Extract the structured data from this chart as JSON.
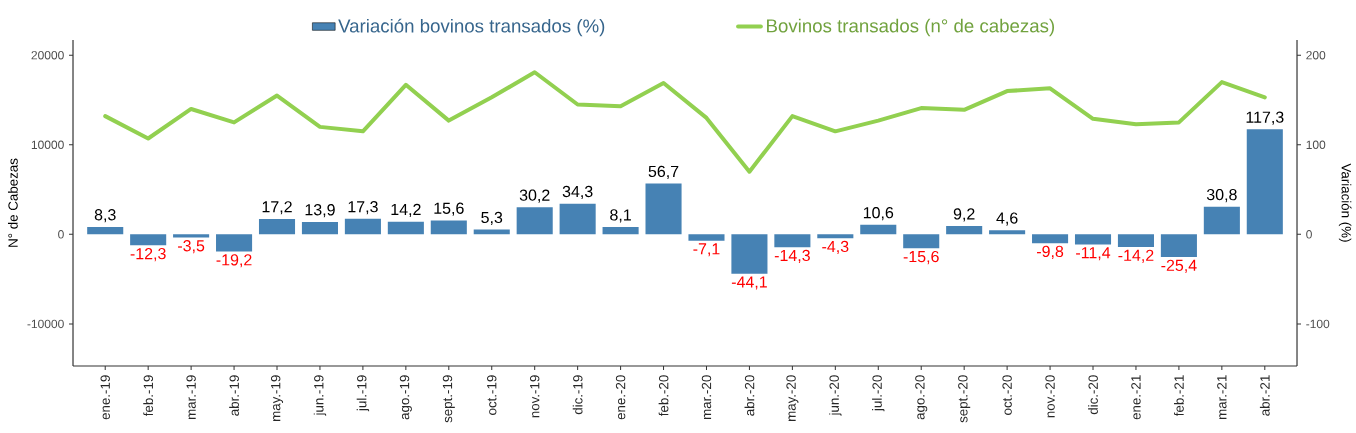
{
  "chart_data": {
    "type": "bar",
    "ylabel": "N° de Cabezas",
    "y2label": "Variación (%)",
    "categories": [
      "ene.-19",
      "feb.-19",
      "mar.-19",
      "abr.-19",
      "may.-19",
      "jun.-19",
      "jul.-19",
      "ago.-19",
      "sept.-19",
      "oct.-19",
      "nov.-19",
      "dic.-19",
      "ene.-20",
      "feb.-20",
      "mar.-20",
      "abr.-20",
      "may.-20",
      "jun.-20",
      "jul.-20",
      "ago.-20",
      "sept.-20",
      "oct.-20",
      "nov.-20",
      "dic.-20",
      "ene.-21",
      "feb.-21",
      "mar.-21",
      "abr.-21"
    ],
    "series": [
      {
        "name": "Variación bovinos transados (%)",
        "axis": "y2",
        "color": "#4682b4",
        "values": [
          8.3,
          -12.3,
          -3.5,
          -19.2,
          17.2,
          13.9,
          17.3,
          14.2,
          15.6,
          5.3,
          30.2,
          34.3,
          8.1,
          56.7,
          -7.1,
          -44.1,
          -14.3,
          -4.3,
          10.6,
          -15.6,
          9.2,
          4.6,
          -9.8,
          -11.4,
          -14.2,
          -25.4,
          30.8,
          117.3
        ],
        "value_labels": [
          "8,3",
          "-12,3",
          "-3,5",
          "-19,2",
          "17,2",
          "13,9",
          "17,3",
          "14,2",
          "15,6",
          "5,3",
          "30,2",
          "34,3",
          "8,1",
          "56,7",
          "-7,1",
          "-44,1",
          "-14,3",
          "-4,3",
          "10,6",
          "-15,6",
          "9,2",
          "4,6",
          "-9,8",
          "-11,4",
          "-14,2",
          "-25,4",
          "30,8",
          "117,3"
        ]
      },
      {
        "name": "Bovinos transados (n° de cabezas)",
        "type": "line",
        "axis": "y",
        "color": "#92d050",
        "values": [
          13200,
          10700,
          14000,
          12500,
          15500,
          12000,
          11500,
          16700,
          12700,
          15300,
          18100,
          14500,
          14300,
          16900,
          13000,
          7000,
          13200,
          11500,
          12700,
          14100,
          13900,
          16000,
          16300,
          12900,
          12300,
          12500,
          17000,
          15300
        ]
      }
    ],
    "ylim": [
      -14700,
      21700
    ],
    "yticks": [
      -10000,
      0,
      10000,
      20000
    ],
    "y2lim": [
      -147,
      217
    ],
    "y2ticks": [
      -100,
      0,
      100,
      200
    ],
    "legend": "top",
    "marker": "none"
  }
}
